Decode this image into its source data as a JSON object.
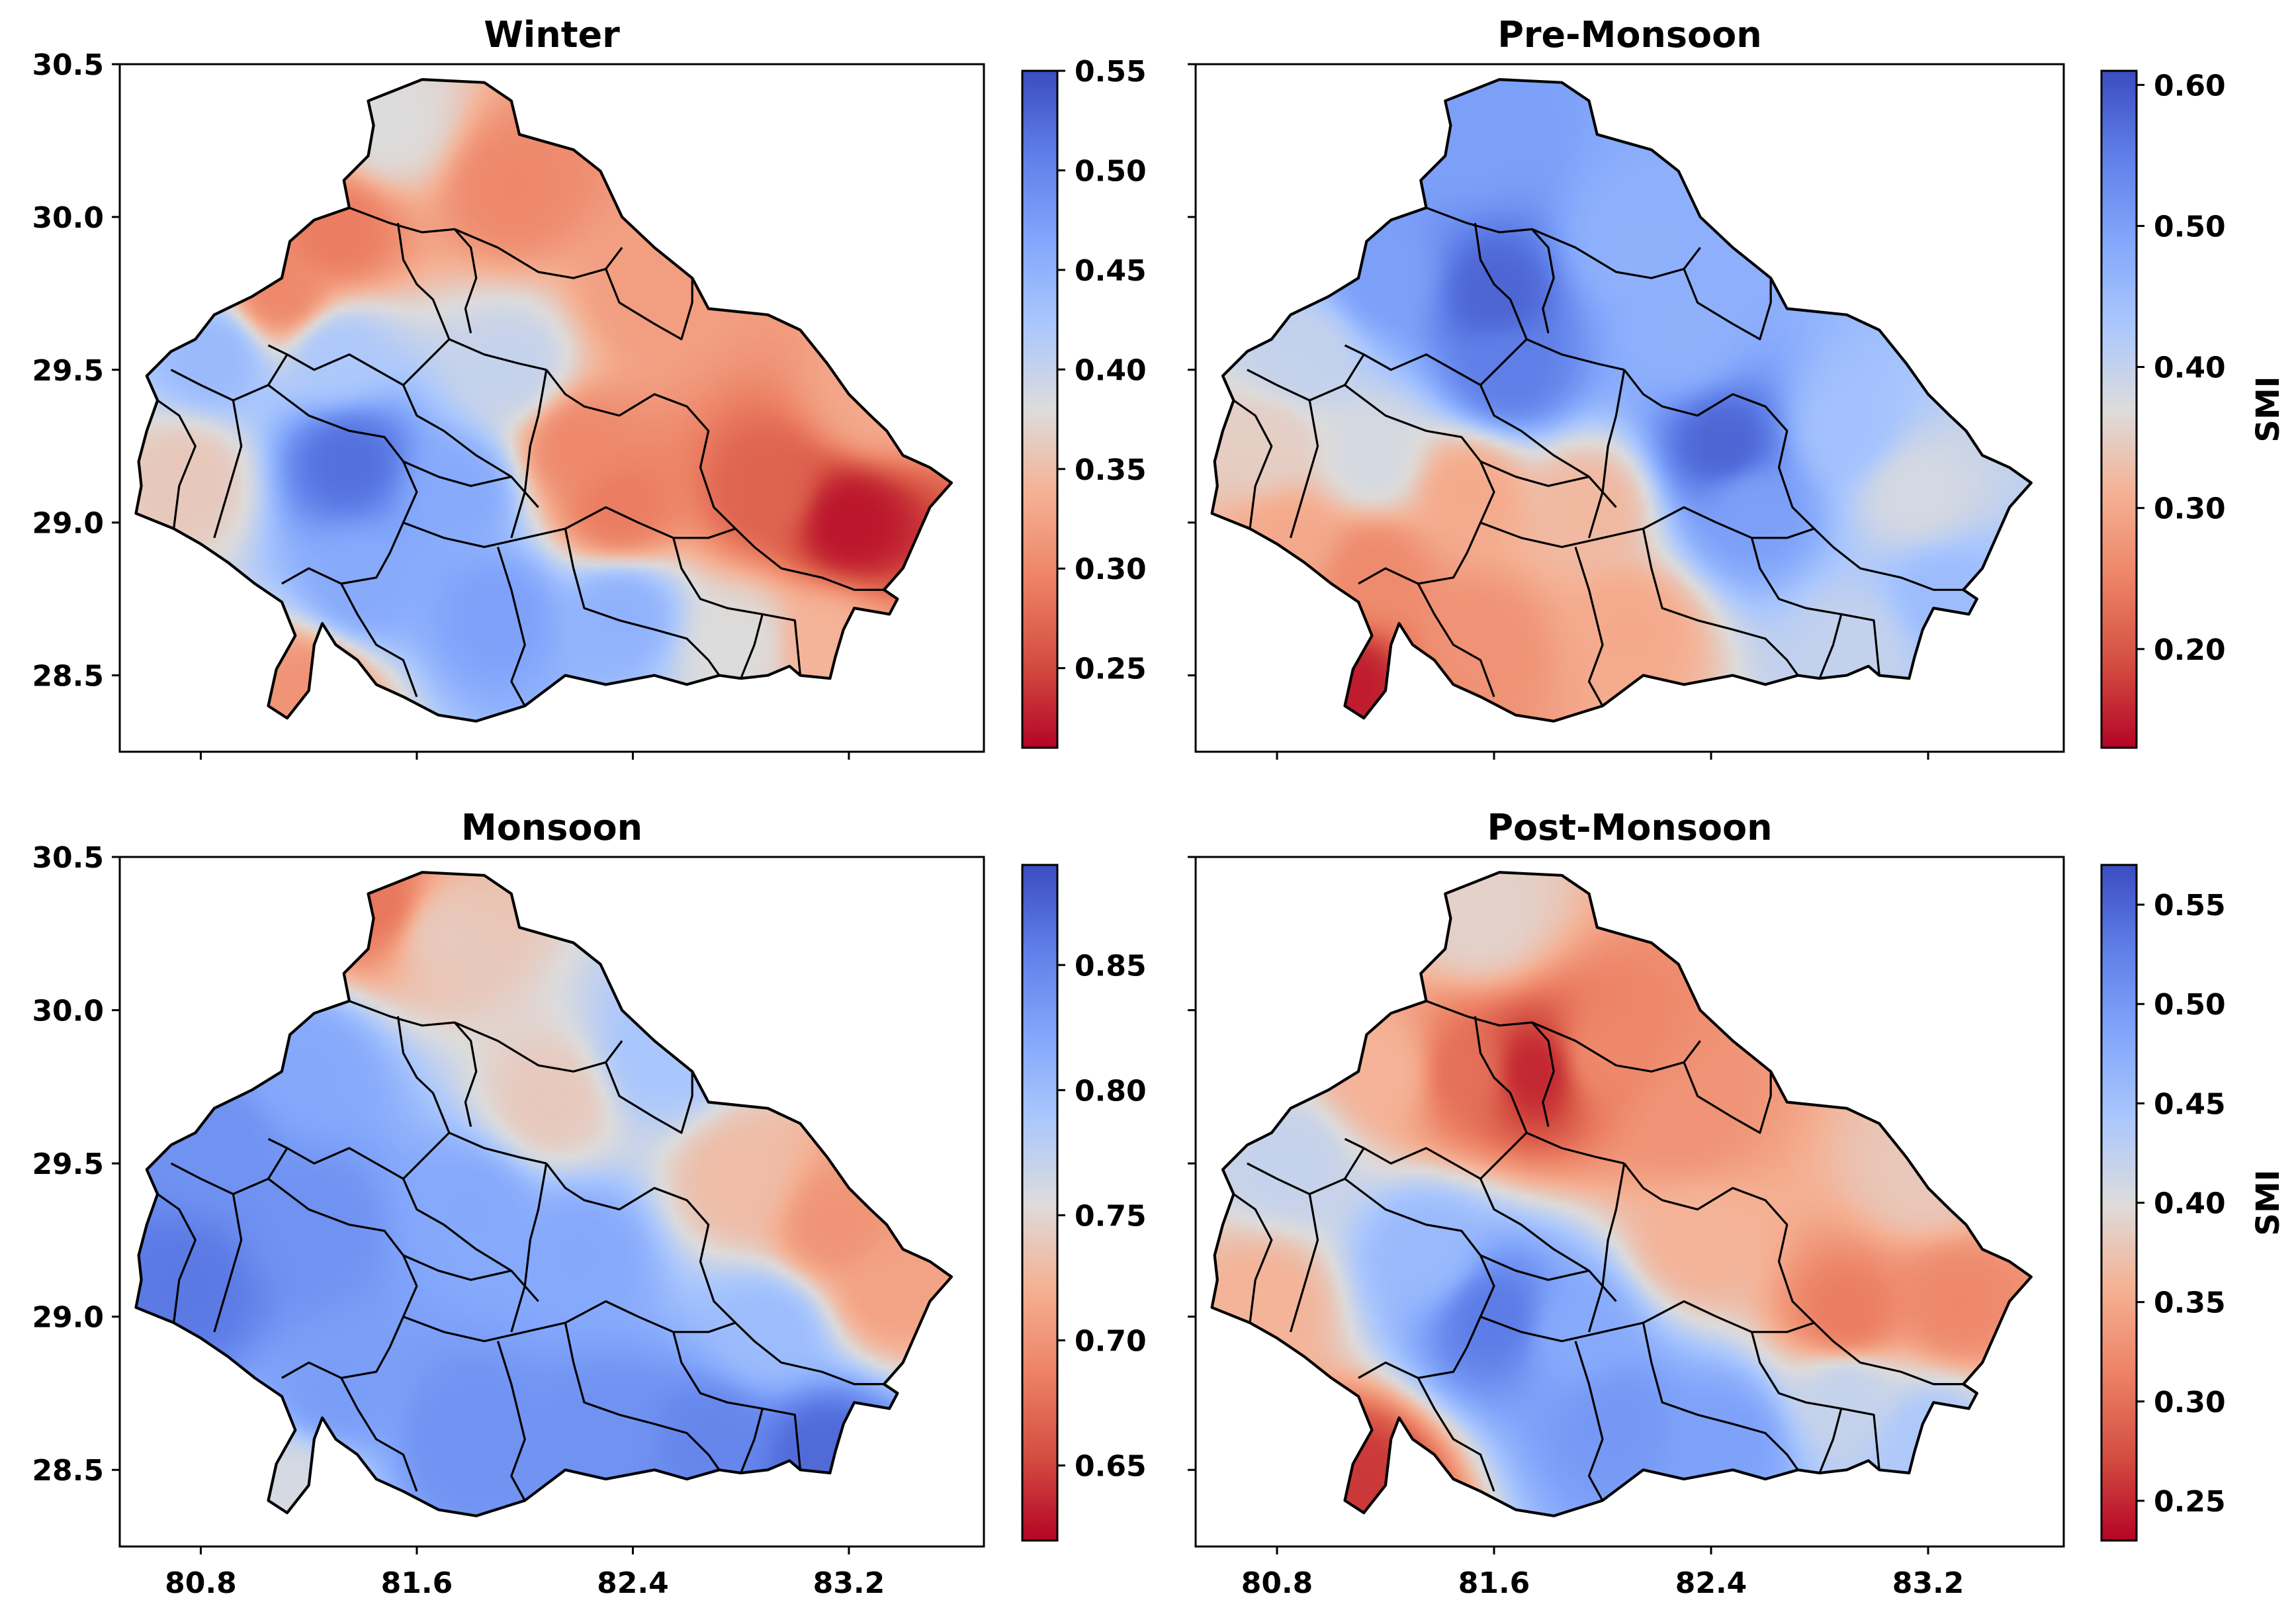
{
  "chart_data": [
    {
      "type": "heatmap",
      "id": "winter",
      "title": "Winter",
      "xlim": [
        80.5,
        83.7
      ],
      "ylim": [
        28.25,
        30.5
      ],
      "xticks": [
        80.8,
        81.6,
        82.4,
        83.2
      ],
      "xtick_labels": [
        "",
        "",
        "",
        ""
      ],
      "yticks": [
        28.5,
        29.0,
        29.5,
        30.0,
        30.5
      ],
      "ytick_labels": [
        "28.5",
        "29.0",
        "29.5",
        "30.0",
        "30.5"
      ],
      "colorbar": {
        "min": 0.21,
        "max": 0.55,
        "ticks": [
          0.25,
          0.3,
          0.35,
          0.4,
          0.45,
          0.5,
          0.55
        ],
        "tick_labels": [
          "0.25",
          "0.30",
          "0.35",
          "0.40",
          "0.45",
          "0.50",
          "0.55"
        ],
        "label": "",
        "colormap": "coolwarm_r"
      },
      "field_base": 0.33,
      "field_points": [
        {
          "lon": 81.5,
          "lat": 30.3,
          "value": 0.38
        },
        {
          "lon": 81.95,
          "lat": 30.1,
          "value": 0.3
        },
        {
          "lon": 82.45,
          "lat": 29.75,
          "value": 0.32
        },
        {
          "lon": 81.1,
          "lat": 29.75,
          "value": 0.3
        },
        {
          "lon": 81.3,
          "lat": 29.95,
          "value": 0.29
        },
        {
          "lon": 80.85,
          "lat": 29.55,
          "value": 0.44
        },
        {
          "lon": 81.3,
          "lat": 29.55,
          "value": 0.42
        },
        {
          "lon": 81.35,
          "lat": 29.2,
          "value": 0.52
        },
        {
          "lon": 81.75,
          "lat": 29.1,
          "value": 0.46
        },
        {
          "lon": 81.9,
          "lat": 28.7,
          "value": 0.47
        },
        {
          "lon": 82.35,
          "lat": 28.7,
          "value": 0.45
        },
        {
          "lon": 81.4,
          "lat": 28.8,
          "value": 0.46
        },
        {
          "lon": 80.75,
          "lat": 29.15,
          "value": 0.36
        },
        {
          "lon": 82.2,
          "lat": 29.25,
          "value": 0.3
        },
        {
          "lon": 82.35,
          "lat": 29.05,
          "value": 0.29
        },
        {
          "lon": 83.2,
          "lat": 29.0,
          "value": 0.22
        },
        {
          "lon": 82.9,
          "lat": 29.1,
          "value": 0.27
        },
        {
          "lon": 83.3,
          "lat": 29.4,
          "value": 0.33
        },
        {
          "lon": 82.8,
          "lat": 28.6,
          "value": 0.38
        },
        {
          "lon": 83.1,
          "lat": 28.6,
          "value": 0.34
        },
        {
          "lon": 81.2,
          "lat": 28.45,
          "value": 0.31
        },
        {
          "lon": 81.95,
          "lat": 29.5,
          "value": 0.4
        }
      ]
    },
    {
      "type": "heatmap",
      "id": "pre-monsoon",
      "title": "Pre-Monsoon",
      "xlim": [
        80.5,
        83.7
      ],
      "ylim": [
        28.25,
        30.5
      ],
      "xticks": [
        80.8,
        81.6,
        82.4,
        83.2
      ],
      "xtick_labels": [
        "",
        "",
        "",
        ""
      ],
      "yticks": [
        28.5,
        29.0,
        29.5,
        30.0,
        30.5
      ],
      "ytick_labels": [
        "",
        "",
        "",
        "",
        ""
      ],
      "colorbar": {
        "min": 0.13,
        "max": 0.61,
        "ticks": [
          0.2,
          0.3,
          0.4,
          0.5,
          0.6
        ],
        "tick_labels": [
          "0.20",
          "0.30",
          "0.40",
          "0.50",
          "0.60"
        ],
        "label": "SMI",
        "colormap": "coolwarm_r"
      },
      "field_base": 0.4,
      "field_points": [
        {
          "lon": 81.5,
          "lat": 30.25,
          "value": 0.5
        },
        {
          "lon": 81.6,
          "lat": 29.75,
          "value": 0.58
        },
        {
          "lon": 81.65,
          "lat": 29.5,
          "value": 0.55
        },
        {
          "lon": 81.2,
          "lat": 29.8,
          "value": 0.5
        },
        {
          "lon": 82.1,
          "lat": 29.9,
          "value": 0.47
        },
        {
          "lon": 82.3,
          "lat": 29.6,
          "value": 0.47
        },
        {
          "lon": 82.45,
          "lat": 29.25,
          "value": 0.58
        },
        {
          "lon": 82.55,
          "lat": 29.05,
          "value": 0.5
        },
        {
          "lon": 82.9,
          "lat": 29.3,
          "value": 0.44
        },
        {
          "lon": 83.15,
          "lat": 29.1,
          "value": 0.38
        },
        {
          "lon": 83.25,
          "lat": 28.75,
          "value": 0.45
        },
        {
          "lon": 82.95,
          "lat": 28.6,
          "value": 0.4
        },
        {
          "lon": 80.9,
          "lat": 29.55,
          "value": 0.4
        },
        {
          "lon": 80.75,
          "lat": 29.25,
          "value": 0.35
        },
        {
          "lon": 81.15,
          "lat": 29.2,
          "value": 0.38
        },
        {
          "lon": 81.5,
          "lat": 29.1,
          "value": 0.3
        },
        {
          "lon": 81.95,
          "lat": 29.05,
          "value": 0.32
        },
        {
          "lon": 81.15,
          "lat": 28.85,
          "value": 0.26
        },
        {
          "lon": 81.55,
          "lat": 28.6,
          "value": 0.27
        },
        {
          "lon": 82.1,
          "lat": 28.65,
          "value": 0.3
        },
        {
          "lon": 81.05,
          "lat": 28.45,
          "value": 0.15
        },
        {
          "lon": 80.85,
          "lat": 28.95,
          "value": 0.3
        }
      ]
    },
    {
      "type": "heatmap",
      "id": "monsoon",
      "title": "Monsoon",
      "xlim": [
        80.5,
        83.7
      ],
      "ylim": [
        28.25,
        30.5
      ],
      "xticks": [
        80.8,
        81.6,
        82.4,
        83.2
      ],
      "xtick_labels": [
        "80.8",
        "81.6",
        "82.4",
        "83.2"
      ],
      "yticks": [
        28.5,
        29.0,
        29.5,
        30.0,
        30.5
      ],
      "ytick_labels": [
        "28.5",
        "29.0",
        "29.5",
        "30.0",
        "30.5"
      ],
      "colorbar": {
        "min": 0.62,
        "max": 0.89,
        "ticks": [
          0.65,
          0.7,
          0.75,
          0.8,
          0.85
        ],
        "tick_labels": [
          "0.65",
          "0.70",
          "0.75",
          "0.80",
          "0.85"
        ],
        "label": "",
        "colormap": "coolwarm_r"
      },
      "field_base": 0.79,
      "field_points": [
        {
          "lon": 81.45,
          "lat": 30.35,
          "value": 0.68
        },
        {
          "lon": 81.7,
          "lat": 30.25,
          "value": 0.74
        },
        {
          "lon": 82.1,
          "lat": 29.7,
          "value": 0.74
        },
        {
          "lon": 82.5,
          "lat": 29.85,
          "value": 0.79
        },
        {
          "lon": 83.15,
          "lat": 29.3,
          "value": 0.7
        },
        {
          "lon": 83.35,
          "lat": 29.1,
          "value": 0.71
        },
        {
          "lon": 82.8,
          "lat": 29.45,
          "value": 0.73
        },
        {
          "lon": 82.9,
          "lat": 28.95,
          "value": 0.8
        },
        {
          "lon": 83.1,
          "lat": 28.55,
          "value": 0.87
        },
        {
          "lon": 82.7,
          "lat": 28.6,
          "value": 0.85
        },
        {
          "lon": 82.3,
          "lat": 28.6,
          "value": 0.84
        },
        {
          "lon": 81.8,
          "lat": 28.6,
          "value": 0.84
        },
        {
          "lon": 81.3,
          "lat": 28.75,
          "value": 0.83
        },
        {
          "lon": 80.75,
          "lat": 29.1,
          "value": 0.86
        },
        {
          "lon": 81.2,
          "lat": 29.3,
          "value": 0.84
        },
        {
          "lon": 81.2,
          "lat": 29.8,
          "value": 0.82
        },
        {
          "lon": 81.8,
          "lat": 29.35,
          "value": 0.82
        },
        {
          "lon": 82.2,
          "lat": 29.2,
          "value": 0.82
        },
        {
          "lon": 81.15,
          "lat": 28.45,
          "value": 0.76
        },
        {
          "lon": 80.85,
          "lat": 29.55,
          "value": 0.84
        }
      ]
    },
    {
      "type": "heatmap",
      "id": "post-monsoon",
      "title": "Post-Monsoon",
      "xlim": [
        80.5,
        83.7
      ],
      "ylim": [
        28.25,
        30.5
      ],
      "xticks": [
        80.8,
        81.6,
        82.4,
        83.2
      ],
      "xtick_labels": [
        "80.8",
        "81.6",
        "82.4",
        "83.2"
      ],
      "yticks": [
        28.5,
        29.0,
        29.5,
        30.0,
        30.5
      ],
      "ytick_labels": [
        "",
        "",
        "",
        "",
        ""
      ],
      "colorbar": {
        "min": 0.23,
        "max": 0.57,
        "ticks": [
          0.25,
          0.3,
          0.35,
          0.4,
          0.45,
          0.5,
          0.55
        ],
        "tick_labels": [
          "0.25",
          "0.30",
          "0.35",
          "0.40",
          "0.45",
          "0.50",
          "0.55"
        ],
        "label": "SMI",
        "colormap": "coolwarm_r"
      },
      "field_base": 0.38,
      "field_points": [
        {
          "lon": 81.55,
          "lat": 30.3,
          "value": 0.39
        },
        {
          "lon": 81.75,
          "lat": 29.8,
          "value": 0.25
        },
        {
          "lon": 81.5,
          "lat": 29.8,
          "value": 0.3
        },
        {
          "lon": 82.0,
          "lat": 29.85,
          "value": 0.32
        },
        {
          "lon": 82.3,
          "lat": 29.65,
          "value": 0.33
        },
        {
          "lon": 81.2,
          "lat": 29.8,
          "value": 0.36
        },
        {
          "lon": 80.85,
          "lat": 29.5,
          "value": 0.42
        },
        {
          "lon": 80.75,
          "lat": 29.05,
          "value": 0.36
        },
        {
          "lon": 81.35,
          "lat": 29.2,
          "value": 0.46
        },
        {
          "lon": 81.6,
          "lat": 29.0,
          "value": 0.53
        },
        {
          "lon": 81.9,
          "lat": 28.95,
          "value": 0.48
        },
        {
          "lon": 82.05,
          "lat": 28.65,
          "value": 0.5
        },
        {
          "lon": 82.45,
          "lat": 28.6,
          "value": 0.49
        },
        {
          "lon": 82.9,
          "lat": 28.75,
          "value": 0.42
        },
        {
          "lon": 83.2,
          "lat": 28.6,
          "value": 0.44
        },
        {
          "lon": 82.35,
          "lat": 29.25,
          "value": 0.36
        },
        {
          "lon": 82.9,
          "lat": 29.0,
          "value": 0.31
        },
        {
          "lon": 83.3,
          "lat": 29.05,
          "value": 0.32
        },
        {
          "lon": 83.2,
          "lat": 29.45,
          "value": 0.38
        },
        {
          "lon": 81.1,
          "lat": 28.45,
          "value": 0.26
        }
      ]
    }
  ]
}
